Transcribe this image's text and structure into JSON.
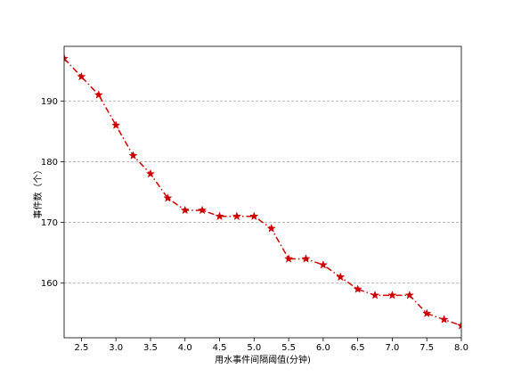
{
  "chart_data": {
    "type": "line",
    "title": "",
    "xlabel": "用水事件间隔阈值(分钟)",
    "ylabel": "事件数（个）",
    "xlim": [
      2.25,
      8.0
    ],
    "ylim": [
      151,
      199
    ],
    "xticks": [
      2.5,
      3.0,
      3.5,
      4.0,
      4.5,
      5.0,
      5.5,
      6.0,
      6.5,
      7.0,
      7.5,
      8.0
    ],
    "xtick_labels": [
      "2.5",
      "3.0",
      "3.5",
      "4.0",
      "4.5",
      "5.0",
      "5.5",
      "6.0",
      "6.5",
      "7.0",
      "7.5",
      "8.0"
    ],
    "yticks": [
      160,
      170,
      180,
      190
    ],
    "ytick_labels": [
      "160",
      "170",
      "180",
      "190"
    ],
    "grid": "horizontal dashed",
    "series": [
      {
        "color": "#cc0000",
        "marker": "star",
        "linestyle": "dash-dot",
        "x": [
          2.25,
          2.5,
          2.75,
          3.0,
          3.25,
          3.5,
          3.75,
          4.0,
          4.25,
          4.5,
          4.75,
          5.0,
          5.25,
          5.5,
          5.75,
          6.0,
          6.25,
          6.5,
          6.75,
          7.0,
          7.25,
          7.5,
          7.75,
          8.0
        ],
        "y": [
          197,
          194,
          191,
          186,
          181,
          178,
          174,
          172,
          172,
          171,
          171,
          171,
          169,
          164,
          164,
          163,
          161,
          159,
          158,
          158,
          158,
          155,
          154,
          153
        ]
      }
    ]
  }
}
